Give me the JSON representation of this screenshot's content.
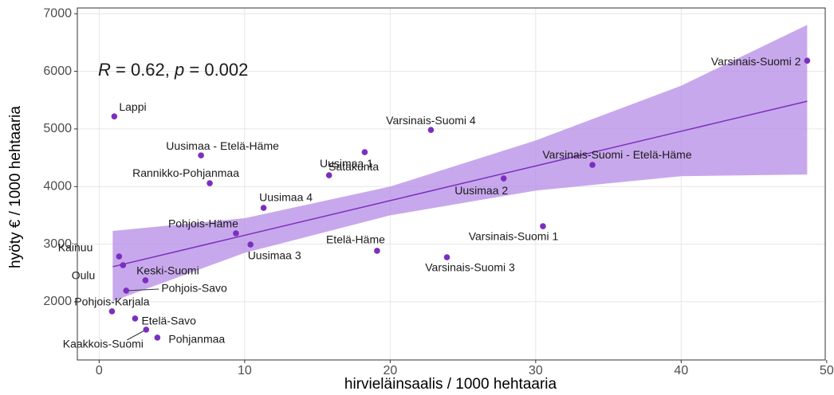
{
  "chart_data": {
    "type": "scatter",
    "x_label": "hirvieläinsaalis / 1000 hehtaaria",
    "y_label": "hyöty € / 1000 hehtaaria",
    "annotation": [
      "R",
      " = 0.62, ",
      "p",
      " = 0.002"
    ],
    "color": "#7b2fbe",
    "xlim": [
      -1.5,
      49.9
    ],
    "ylim": [
      990,
      7100
    ],
    "xticks": [
      0,
      10,
      20,
      30,
      40,
      50
    ],
    "yticks": [
      2000,
      3000,
      4000,
      5000,
      6000,
      7000
    ],
    "grid": true,
    "series": [
      {
        "name": "",
        "labels": [
          "Lappi",
          "Varsinais-Suomi 2",
          "Varsinais-Suomi 4",
          "Uusimaa - Etelä-Häme",
          "Uusimaa 1",
          "Rannikko-Pohjanmaa",
          "Varsinais-Suomi - Etelä-Häme",
          "Uusimaa 2",
          "Satakunta",
          "Uusimaa 4",
          "Pohjois-Häme",
          "Uusimaa 3",
          "Etelä-Häme",
          "Varsinais-Suomi 1",
          "Varsinais-Suomi 3",
          "Kainuu",
          "Oulu",
          "Keski-Suomi",
          "Pohjois-Savo",
          "Pohjois-Karjala",
          "Etelä-Savo",
          "Kaakkois-Suomi",
          "Pohjanmaa"
        ],
        "x": [
          1.04,
          48.66,
          22.8,
          7.0,
          18.25,
          7.6,
          33.9,
          27.8,
          15.8,
          11.3,
          9.4,
          10.4,
          19.1,
          30.5,
          23.9,
          1.37,
          1.64,
          3.18,
          1.86,
          0.88,
          2.47,
          3.23,
          4.0
        ],
        "values": [
          5218,
          6185,
          4983,
          4541,
          4597,
          4058,
          4376,
          4141,
          4196,
          3630,
          3188,
          2994,
          2884,
          3312,
          2773,
          2787,
          2635,
          2373,
          2193,
          1834,
          1710,
          1517,
          1378
        ]
      }
    ],
    "regression": {
      "x": [
        0.93,
        10,
        20,
        30,
        40,
        48.66
      ],
      "values": [
        2608,
        3154,
        3756,
        4358,
        4960,
        5481
      ],
      "upper": [
        3230,
        3450,
        4000,
        4800,
        5750,
        6807
      ],
      "lower": [
        2010,
        2850,
        3500,
        3930,
        4180,
        4210
      ],
      "color": "#7b2fbe",
      "band_color": "#b68be6"
    }
  }
}
